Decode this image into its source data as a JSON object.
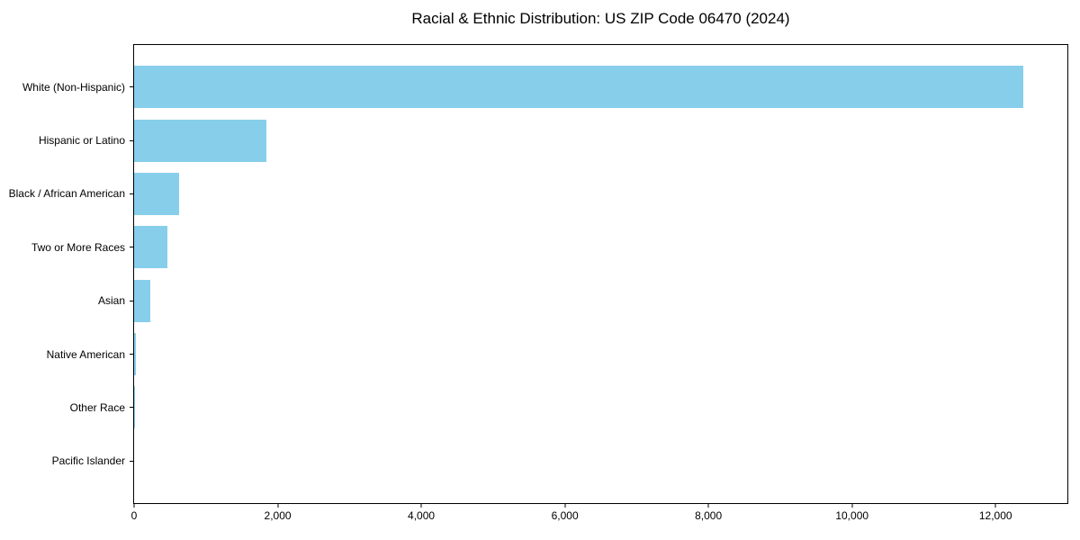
{
  "chart_data": {
    "type": "bar",
    "orientation": "horizontal",
    "title": "Racial & Ethnic Distribution: US ZIP Code 06470 (2024)",
    "categories": [
      "White (Non-Hispanic)",
      "Hispanic or Latino",
      "Black / African American",
      "Two or More Races",
      "Asian",
      "Native American",
      "Other Race",
      "Pacific Islander"
    ],
    "values": [
      12390,
      1840,
      630,
      470,
      230,
      25,
      5,
      0
    ],
    "xlabel": "",
    "ylabel": "",
    "xlim": [
      0,
      13000
    ],
    "xticks": [
      0,
      2000,
      4000,
      6000,
      8000,
      10000,
      12000
    ],
    "xtick_labels": [
      "0",
      "2,000",
      "4,000",
      "6,000",
      "8,000",
      "10,000",
      "12,000"
    ],
    "bar_color": "#87CEEB",
    "axis_color": "#000000",
    "text_color": "#000000",
    "background_color": "#ffffff",
    "grid": false,
    "legend": "none"
  }
}
